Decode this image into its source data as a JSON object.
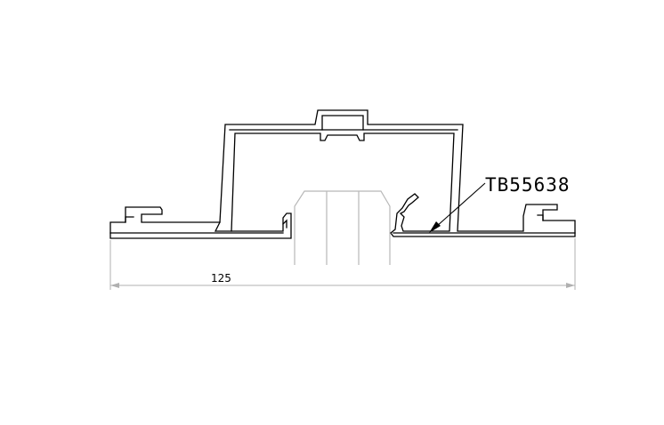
{
  "drawing": {
    "part_number": "TB55638",
    "overall_width_dimension": "125"
  },
  "colors": {
    "profile": "#000000",
    "insert": "#b8b8b8",
    "dimension": "#b0b0b0",
    "background": "#ffffff"
  }
}
